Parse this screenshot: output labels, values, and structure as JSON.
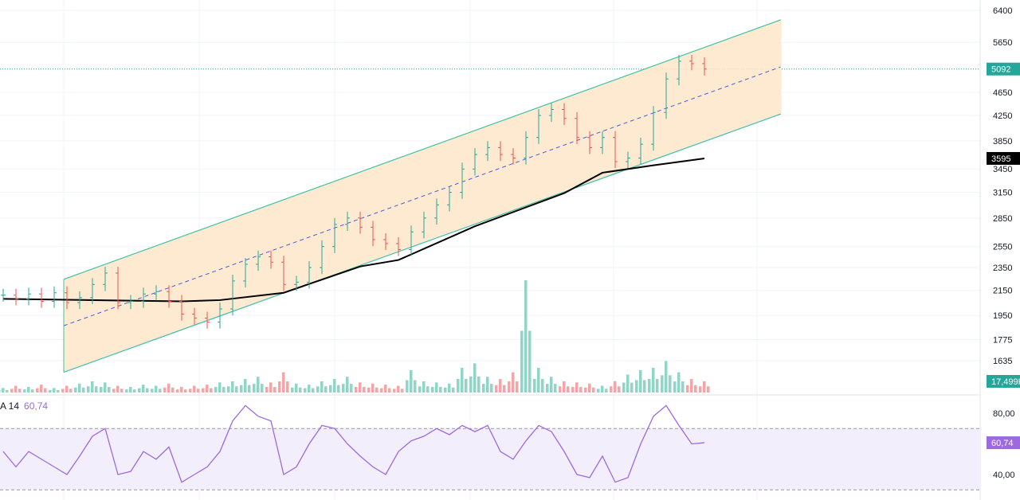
{
  "chart_data": {
    "type": "candlestick",
    "price_axis": {
      "scale": "log",
      "range": [
        1635,
        6400
      ],
      "ticks": [
        "6400",
        "5650",
        "4650",
        "4250",
        "3850",
        "3450",
        "3150",
        "2850",
        "2550",
        "2350",
        "2150",
        "1950",
        "1775",
        "1635"
      ]
    },
    "closes": [
      2110,
      2080,
      2120,
      2060,
      2130,
      2050,
      2090,
      2200,
      2300,
      2050,
      2060,
      2120,
      2140,
      2060,
      1960,
      1930,
      1900,
      2000,
      2230,
      2380,
      2450,
      2400,
      2200,
      2220,
      2350,
      2550,
      2780,
      2850,
      2750,
      2620,
      2580,
      2520,
      2700,
      2850,
      3000,
      3150,
      3450,
      3650,
      3750,
      3650,
      3600,
      3900,
      4250,
      4350,
      4200,
      3900,
      3750,
      3900,
      3550,
      3600,
      3800,
      4300,
      4900,
      5250,
      5200,
      5092
    ],
    "moving_average": {
      "points": [
        [
          0,
          2080
        ],
        [
          14,
          2060
        ],
        [
          17,
          2070
        ],
        [
          22,
          2130
        ],
        [
          28,
          2360
        ],
        [
          31,
          2420
        ],
        [
          37,
          2760
        ],
        [
          44,
          3140
        ],
        [
          47,
          3400
        ],
        [
          51,
          3500
        ],
        [
          55,
          3595
        ]
      ],
      "last_label": "3595",
      "color": "#000000"
    },
    "last_price_label": "5092",
    "channel": {
      "upper": [
        [
          4.75,
          2245
        ],
        [
          61,
          6170
        ]
      ],
      "lower": [
        [
          4.75,
          1563
        ],
        [
          61,
          4275
        ]
      ],
      "fill": "#fde8cc",
      "line_color": "#3fc1a8",
      "mid_color": "#4b5bd6"
    },
    "volume": {
      "values": [
        4,
        6,
        5,
        7,
        4,
        6,
        8,
        10,
        9,
        6,
        5,
        7,
        6,
        8,
        5,
        6,
        7,
        9,
        10,
        12,
        14,
        9,
        18,
        8,
        7,
        10,
        12,
        14,
        9,
        8,
        7,
        6,
        20,
        10,
        9,
        8,
        22,
        26,
        14,
        12,
        18,
        100,
        22,
        14,
        10,
        9,
        8,
        6,
        10,
        16,
        20,
        22,
        28,
        18,
        12,
        10
      ],
      "last_label": "17,499K",
      "up_color": "#8fd6c8",
      "down_color": "#f5a5a5"
    },
    "rsi": {
      "legend_name": "A 14",
      "legend_value": "60,74",
      "range": [
        40,
        80
      ],
      "bands": [
        70,
        30
      ],
      "ticks": [
        "80,00",
        "40,00"
      ],
      "last_label": "60,74",
      "values": [
        55,
        45,
        55,
        50,
        45,
        40,
        52,
        65,
        70,
        40,
        42,
        55,
        50,
        58,
        35,
        40,
        45,
        55,
        75,
        85,
        78,
        75,
        40,
        45,
        60,
        72,
        70,
        60,
        52,
        45,
        40,
        55,
        62,
        65,
        70,
        66,
        72,
        68,
        72,
        55,
        50,
        62,
        72,
        68,
        55,
        40,
        38,
        52,
        35,
        38,
        60,
        78,
        85,
        72,
        60,
        60.74
      ],
      "color": "#9c6ade"
    },
    "colors": {
      "up": "#26a69a",
      "down": "#ef5350"
    }
  }
}
